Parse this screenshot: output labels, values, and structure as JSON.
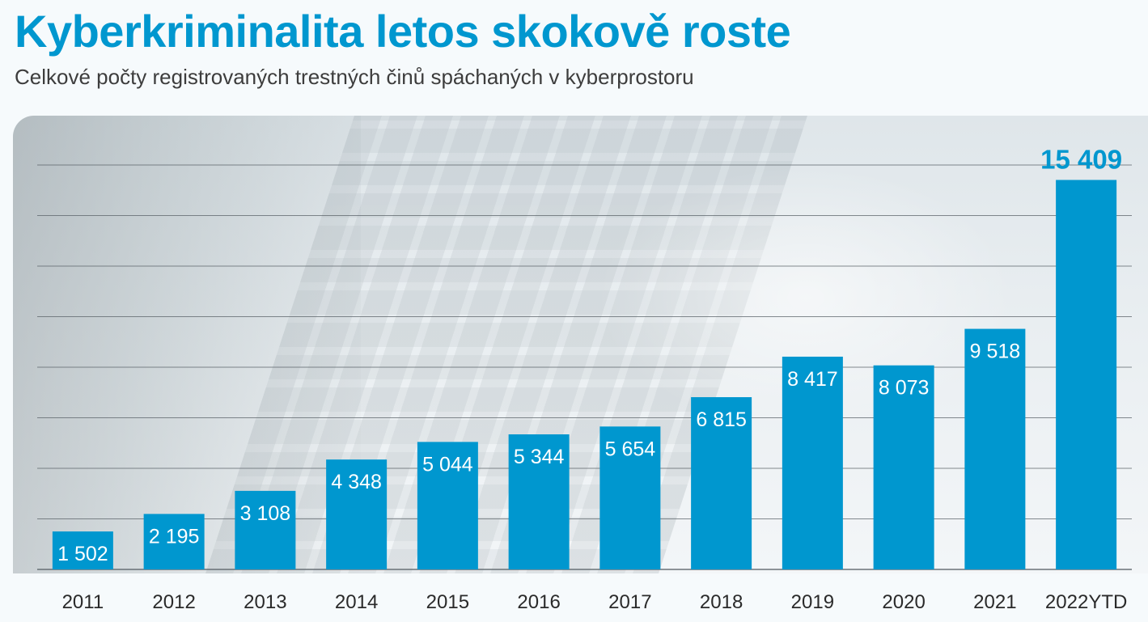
{
  "header": {
    "title": "Kyberkriminalita letos skokově roste",
    "subtitle": "Celkové počty registrovaných trestných činů spáchaných v kyberprostoru"
  },
  "colors": {
    "accent": "#0097cf",
    "bar": "#0097cf",
    "bar_label": "#ffffff",
    "gridline": "#5c646a",
    "title": "#0097cf"
  },
  "chart_data": {
    "type": "bar",
    "title": "Kyberkriminalita letos skokově roste",
    "subtitle": "Celkové počty registrovaných trestných činů spáchaných v kyberprostoru",
    "categories": [
      "2011",
      "2012",
      "2013",
      "2014",
      "2015",
      "2016",
      "2017",
      "2018",
      "2019",
      "2020",
      "2021",
      "2022YTD"
    ],
    "values": [
      1502,
      2195,
      3108,
      4348,
      5044,
      5344,
      5654,
      6815,
      8417,
      8073,
      9518,
      15409
    ],
    "value_labels": [
      "1 502",
      "2 195",
      "3 108",
      "4 348",
      "5 044",
      "5 344",
      "5 654",
      "6 815",
      "8 417",
      "8 073",
      "9 518",
      "15 409"
    ],
    "xlabel": "",
    "ylabel": "",
    "ylim": [
      0,
      16000
    ],
    "grid": true,
    "y_axis_labels": false,
    "highlight_last": true
  }
}
